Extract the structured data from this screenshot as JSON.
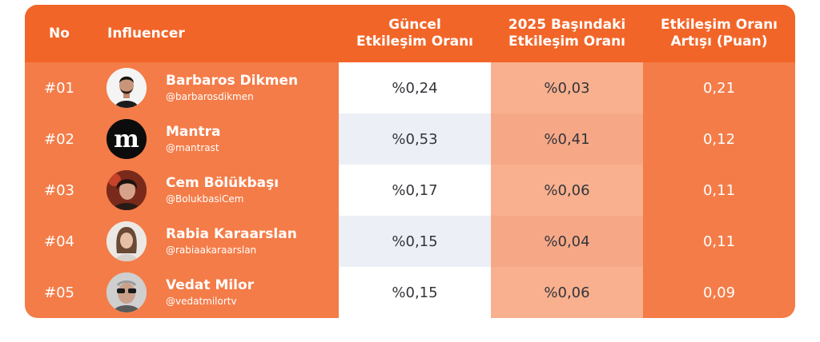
{
  "chart_data": {
    "type": "table",
    "columns": [
      "No",
      "Influencer",
      "Güncel Etkileşim Oranı",
      "2025 Başındaki Etkileşim Oranı",
      "Etkileşim Oranı Artışı (Puan)"
    ],
    "header": {
      "no": "No",
      "influencer": "Influencer",
      "current": [
        "Güncel",
        "Etkileşim Oranı"
      ],
      "start": [
        "2025 Başındaki",
        "Etkileşim Oranı"
      ],
      "increase": [
        "Etkileşim Oranı",
        "Artışı (Puan)"
      ]
    },
    "rows": [
      {
        "rank": "#01",
        "name": "Barbaros Dikmen",
        "handle": "@barbarosdikmen",
        "current": "%0,24",
        "start": "%0,03",
        "increase": "0,21"
      },
      {
        "rank": "#02",
        "name": "Mantra",
        "handle": "@mantrast",
        "current": "%0,53",
        "start": "%0,41",
        "increase": "0,12"
      },
      {
        "rank": "#03",
        "name": "Cem Bölükbaşı",
        "handle": "@BolukbasiCem",
        "current": "%0,17",
        "start": "%0,06",
        "increase": "0,11"
      },
      {
        "rank": "#04",
        "name": "Rabia Karaarslan",
        "handle": "@rabiaakaraarslan",
        "current": "%0,15",
        "start": "%0,04",
        "increase": "0,11"
      },
      {
        "rank": "#05",
        "name": "Vedat Milor",
        "handle": "@vedatmilortv",
        "current": "%0,15",
        "start": "%0,06",
        "increase": "0,09"
      }
    ],
    "mantra_logo_letter": "m"
  },
  "colors": {
    "header_bg": "#f26528",
    "body_bg": "#f47c48",
    "current_col_odd": "#ffffff",
    "current_col_even": "#ecf0f6",
    "start_col_odd": "#f8b08e",
    "start_col_even": "#f6a886",
    "text_dark": "#33343a",
    "text_light": "#ffffff"
  }
}
